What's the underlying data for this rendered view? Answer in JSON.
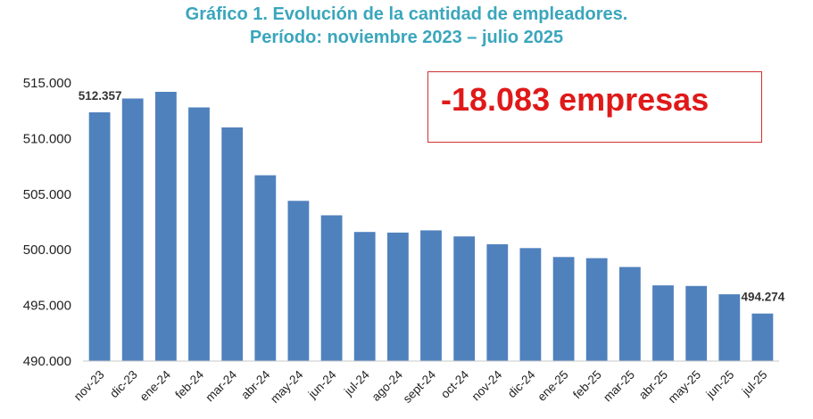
{
  "title_line1": "Gráfico 1. Evolución de la cantidad de empleadores.",
  "title_line2": "Período: noviembre 2023 – julio 2025",
  "callout": "-18.083 empresas",
  "colors": {
    "bar": "#4f81bd",
    "title": "#3aa6bc",
    "callout": "#e01919"
  },
  "chart_data": {
    "type": "bar",
    "categories": [
      "nov-23",
      "dic-23",
      "ene-24",
      "feb-24",
      "mar-24",
      "abr-24",
      "may-24",
      "jun-24",
      "jul-24",
      "ago-24",
      "sept-24",
      "oct-24",
      "nov-24",
      "dic-24",
      "ene-25",
      "feb-25",
      "mar-25",
      "abr-25",
      "may-25",
      "jun-25",
      "jul-25"
    ],
    "values": [
      512357,
      513600,
      514200,
      512800,
      511000,
      506700,
      504400,
      503100,
      501600,
      501550,
      501750,
      501200,
      500500,
      500150,
      499350,
      499250,
      498450,
      496800,
      496750,
      496000,
      494274
    ],
    "ylim": [
      490000,
      515000
    ],
    "yticks": [
      490000,
      495000,
      500000,
      505000,
      510000,
      515000
    ],
    "ytick_labels": [
      "490.000",
      "495.000",
      "500.000",
      "505.000",
      "510.000",
      "515.000"
    ],
    "data_labels": [
      {
        "index": 0,
        "text": "512.357"
      },
      {
        "index": 20,
        "text": "494.274"
      }
    ],
    "grid": false,
    "xlabel": "",
    "ylabel": ""
  }
}
